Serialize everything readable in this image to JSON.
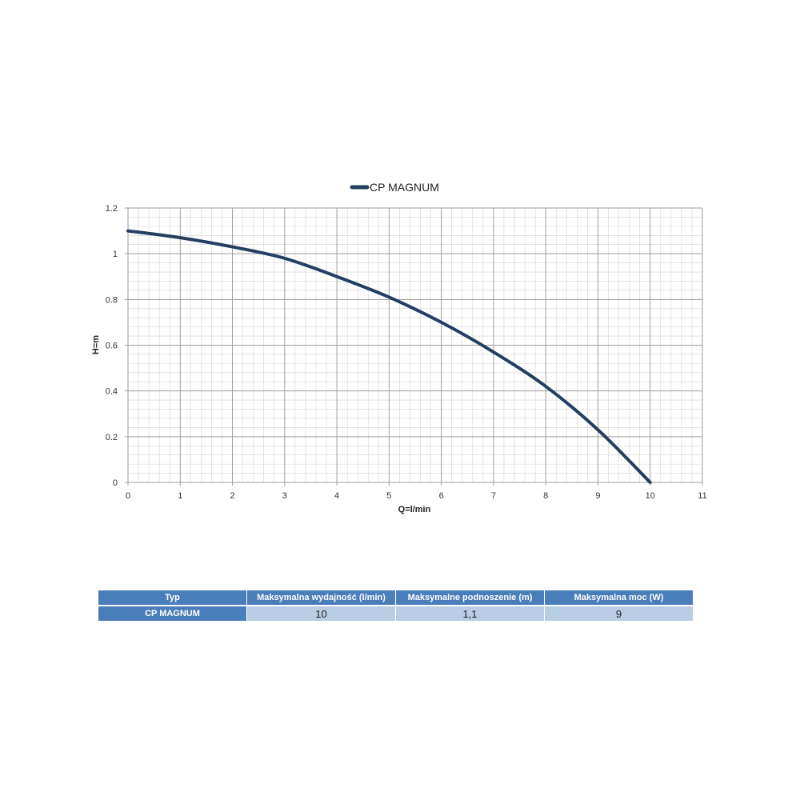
{
  "chart_data": {
    "type": "line",
    "legend": "top",
    "grid": true,
    "xlabel": "Q=l/min",
    "ylabel": "H=m",
    "xlim": [
      0,
      11
    ],
    "ylim": [
      0,
      1.2
    ],
    "x_ticks": [
      "0",
      "1",
      "2",
      "3",
      "4",
      "5",
      "6",
      "7",
      "8",
      "9",
      "10",
      "11"
    ],
    "y_ticks": [
      "0",
      "0.2",
      "0.4",
      "0.6",
      "0.8",
      "1",
      "1.2"
    ],
    "series": [
      {
        "name": "CP MAGNUM",
        "color": "#243f60",
        "x": [
          0,
          1,
          2,
          3,
          4,
          5,
          6,
          7,
          8,
          9,
          10
        ],
        "y": [
          1.1,
          1.07,
          1.03,
          0.98,
          0.9,
          0.81,
          0.7,
          0.57,
          0.42,
          0.23,
          0
        ]
      }
    ]
  },
  "table": {
    "headers": [
      "Typ",
      "Maksymalna wydajność (l/min)",
      "Maksymalne podnoszenie (m)",
      "Maksymalna moc (W)"
    ],
    "rows": [
      [
        "CP MAGNUM",
        "10",
        "1,1",
        "9"
      ]
    ]
  }
}
